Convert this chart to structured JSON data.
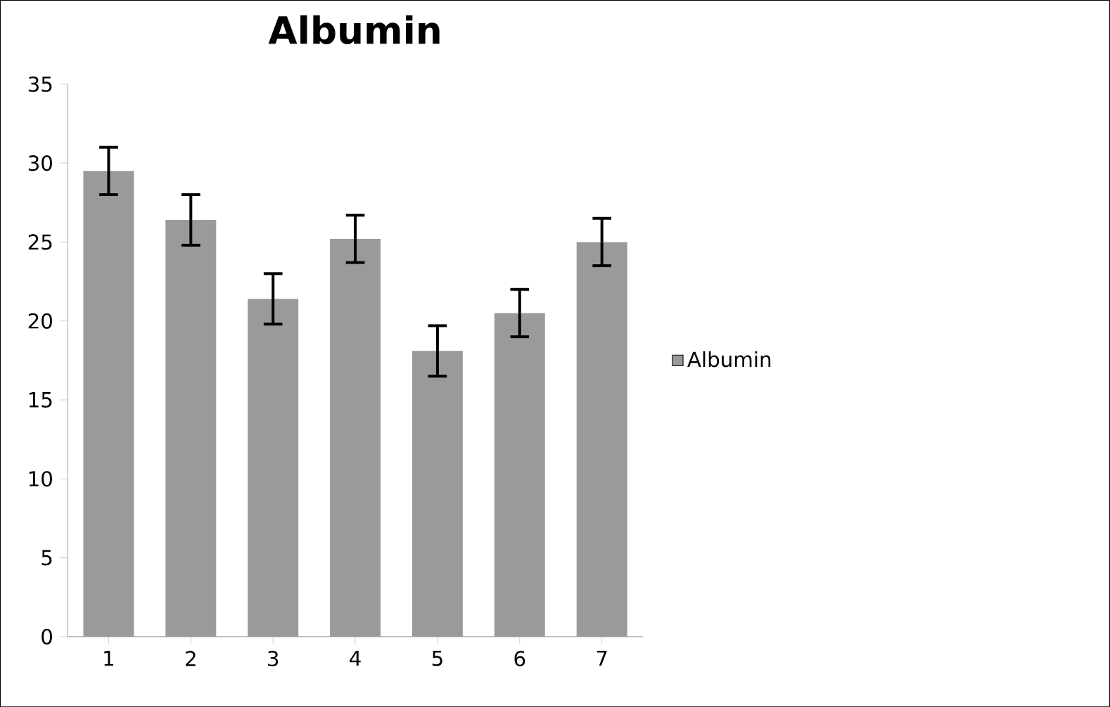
{
  "chart_data": {
    "type": "bar",
    "title": "Albumin",
    "categories": [
      "1",
      "2",
      "3",
      "4",
      "5",
      "6",
      "7"
    ],
    "series": [
      {
        "name": "Albumin",
        "color": "#9a9a9a",
        "values": [
          29.5,
          26.4,
          21.4,
          25.2,
          18.1,
          20.5,
          25.0
        ],
        "errors": [
          1.5,
          1.6,
          1.6,
          1.5,
          1.6,
          1.5,
          1.5
        ]
      }
    ],
    "ylim": [
      0,
      35
    ],
    "yticks": [
      0,
      5,
      10,
      15,
      20,
      25,
      30,
      35
    ],
    "grid": false,
    "legend": "right"
  }
}
